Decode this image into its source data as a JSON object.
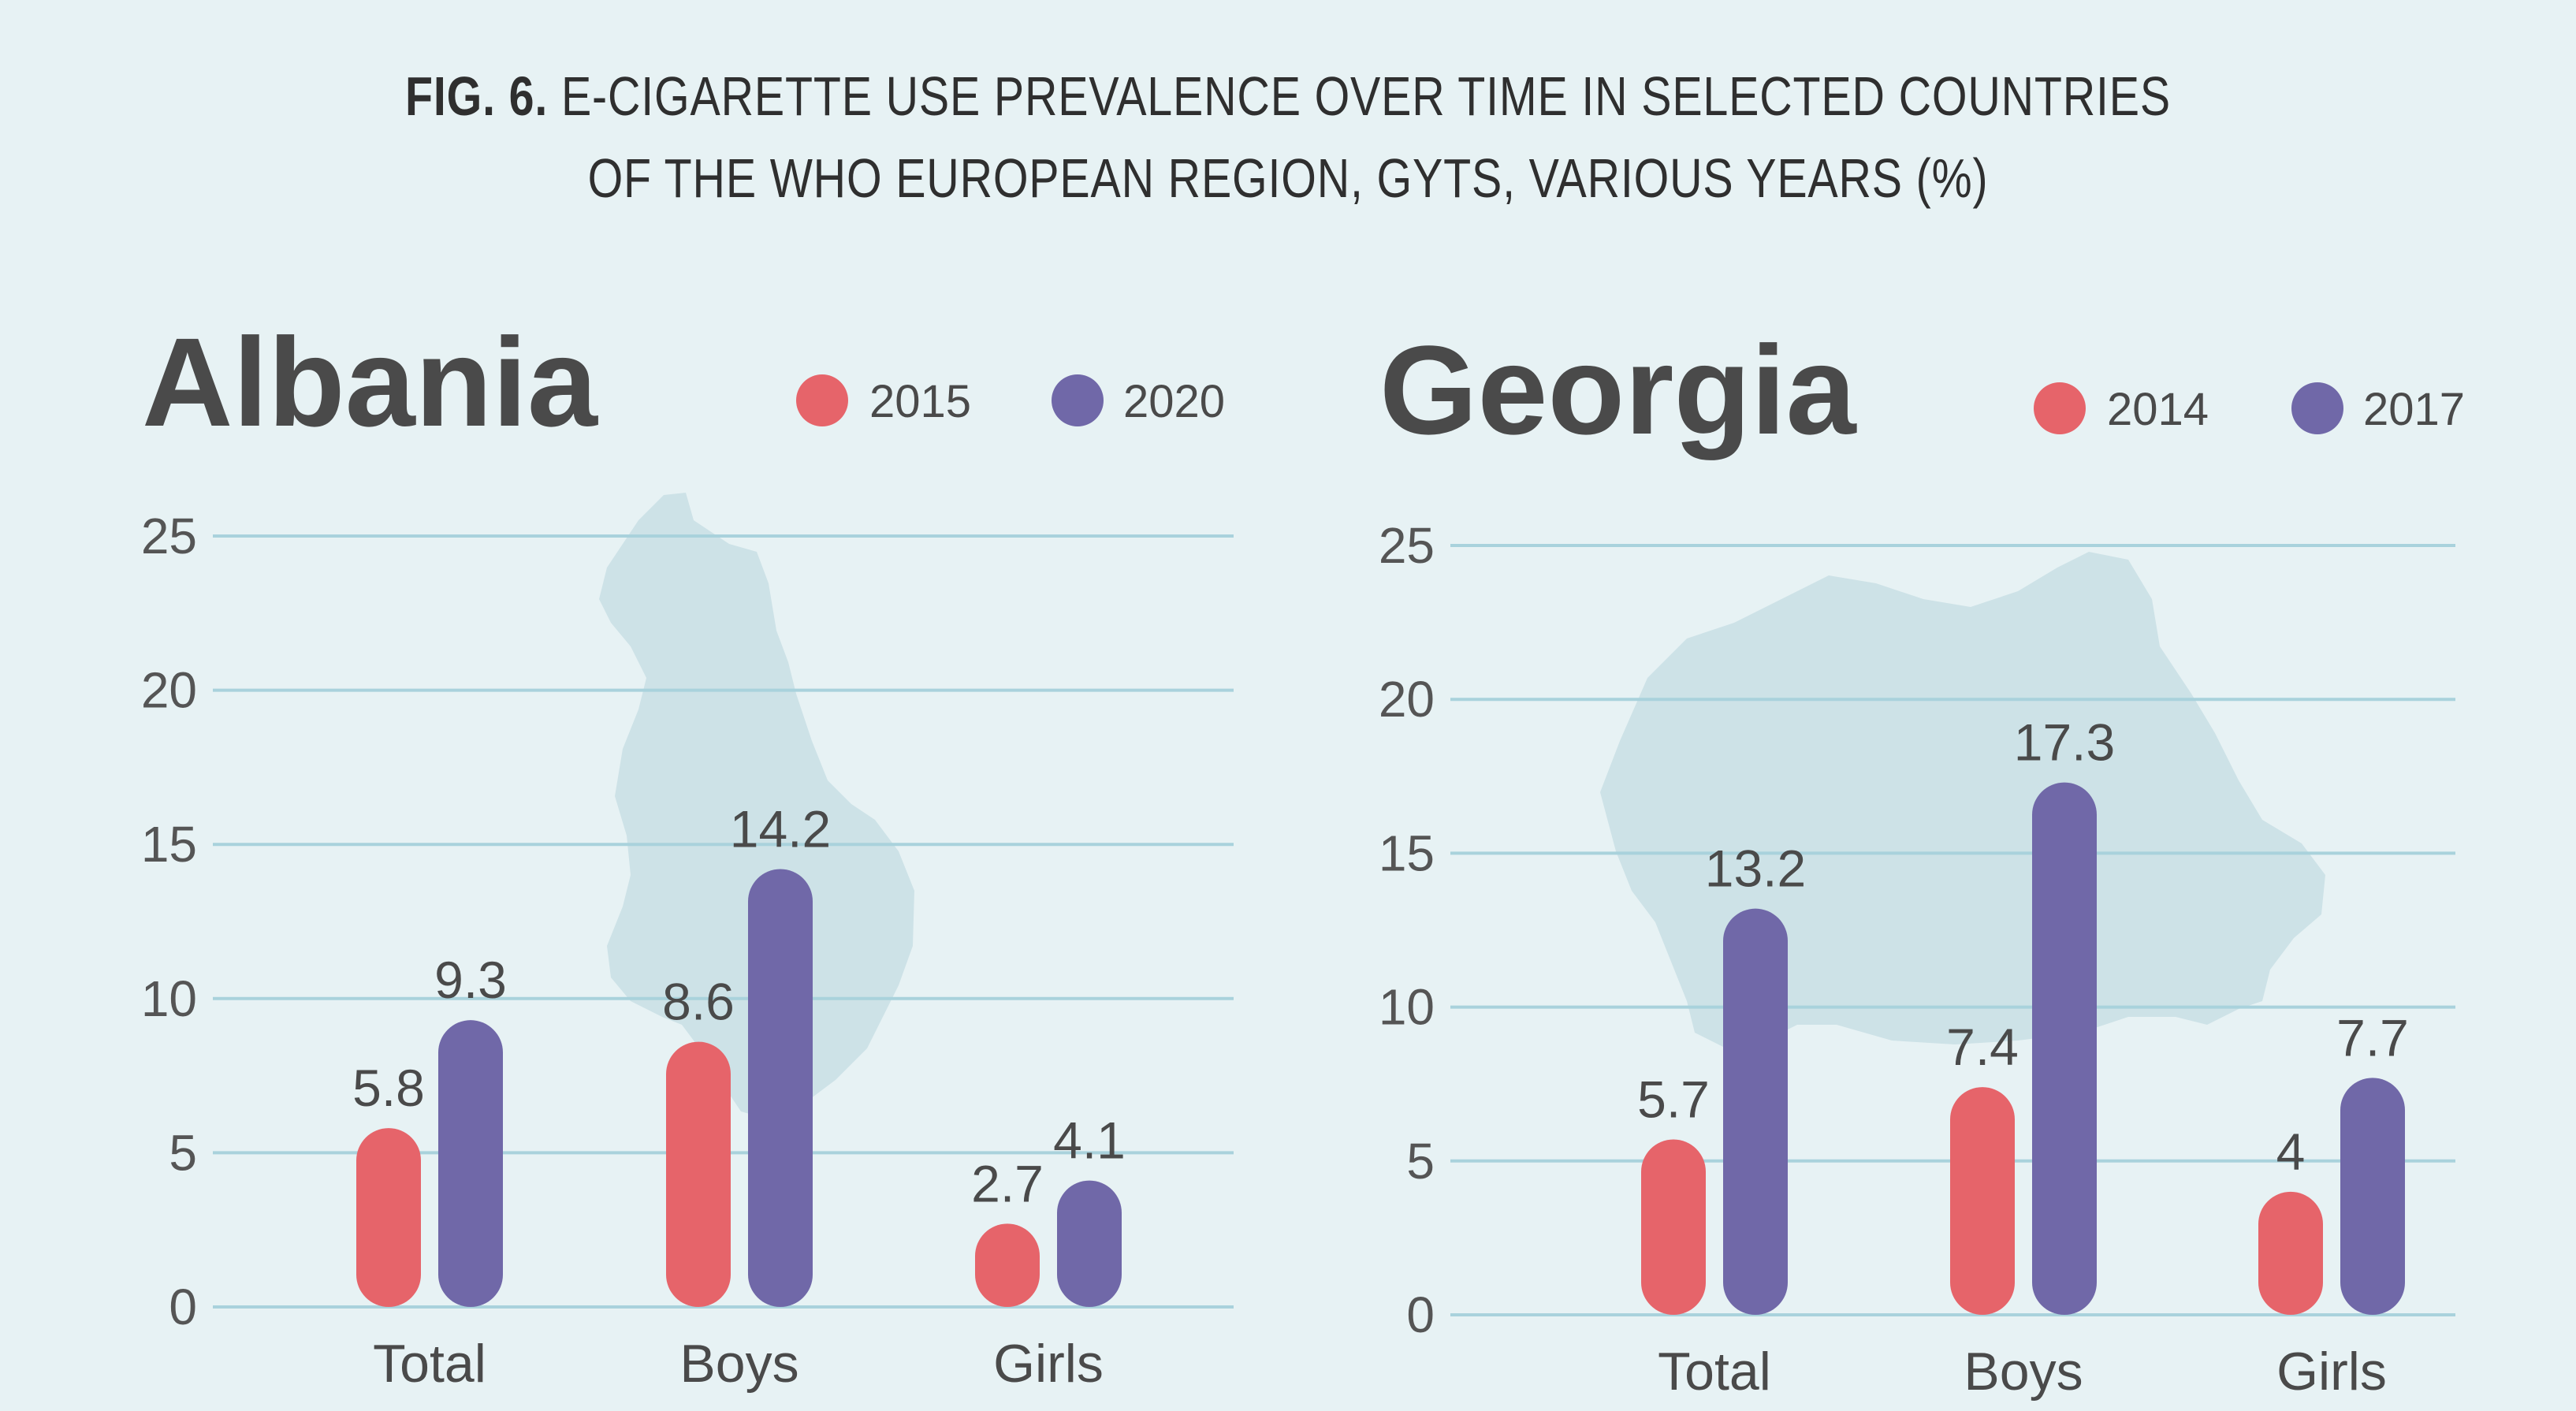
{
  "title": {
    "fig_label": "FIG. 6.",
    "line1": "E-CIGARETTE USE PREVALENCE OVER TIME IN SELECTED COUNTRIES",
    "line2": "OF THE WHO EUROPEAN REGION, GYTS, VARIOUS YEARS (%)"
  },
  "colors": {
    "background": "#e7f2f4",
    "series_a": "#e6646a",
    "series_b": "#7068a8",
    "gridline": "#a9d2dc",
    "map_shape": "#cde2e7"
  },
  "chart_data": [
    {
      "type": "bar",
      "title": "Albania",
      "categories": [
        "Total",
        "Boys",
        "Girls"
      ],
      "series": [
        {
          "name": "2015",
          "values": [
            5.8,
            8.6,
            2.7
          ]
        },
        {
          "name": "2020",
          "values": [
            9.3,
            14.2,
            4.1
          ]
        }
      ],
      "yticks": [
        "0",
        "5",
        "10",
        "15",
        "20",
        "25"
      ],
      "ylim": [
        0,
        25
      ],
      "grid": true,
      "legend_position": "top-right"
    },
    {
      "type": "bar",
      "title": "Georgia",
      "categories": [
        "Total",
        "Boys",
        "Girls"
      ],
      "series": [
        {
          "name": "2014",
          "values": [
            5.7,
            7.4,
            4
          ]
        },
        {
          "name": "2017",
          "values": [
            13.2,
            17.3,
            7.7
          ]
        }
      ],
      "yticks": [
        "0",
        "5",
        "10",
        "15",
        "20",
        "25"
      ],
      "ylim": [
        0,
        25
      ],
      "grid": true,
      "legend_position": "top-right"
    }
  ]
}
